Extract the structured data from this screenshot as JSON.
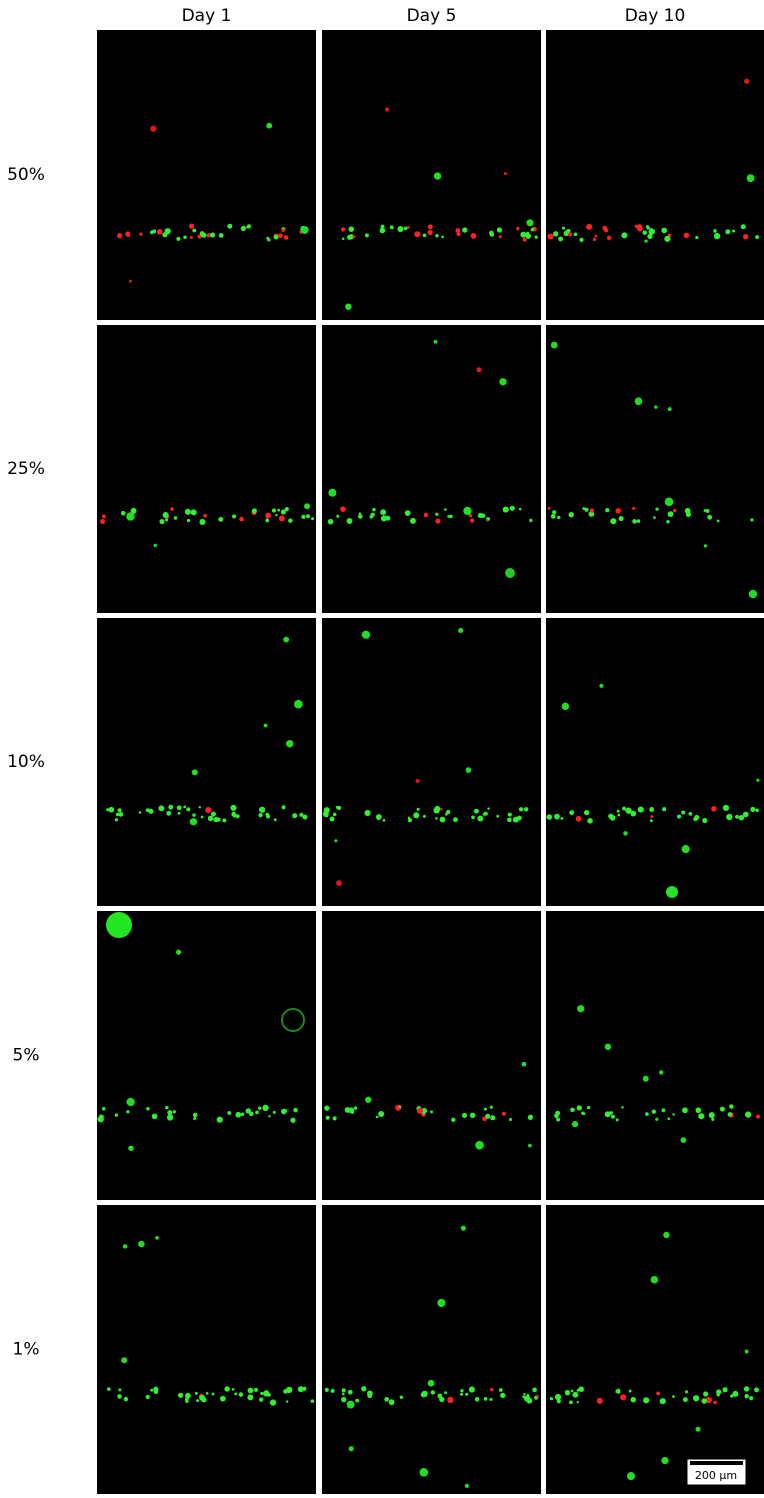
{
  "columns": [
    "Day 1",
    "Day 5",
    "Day 10"
  ],
  "rows": [
    "50%",
    "25%",
    "10%",
    "5%",
    "1%"
  ],
  "scale_bar": "200 μm"
}
